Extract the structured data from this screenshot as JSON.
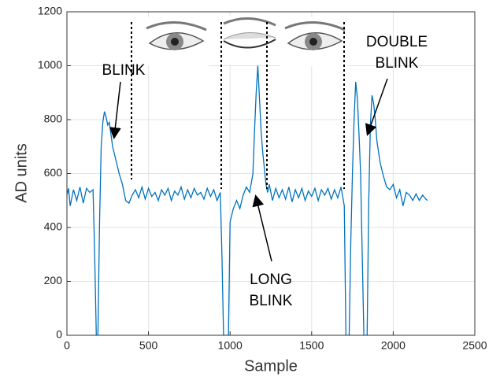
{
  "chart_data": {
    "type": "line",
    "x": [
      0,
      10,
      20,
      40,
      60,
      80,
      100,
      120,
      140,
      160,
      170,
      180,
      190,
      200,
      210,
      220,
      230,
      240,
      250,
      260,
      280,
      300,
      320,
      340,
      360,
      380,
      400,
      420,
      440,
      460,
      480,
      500,
      520,
      540,
      560,
      580,
      600,
      620,
      640,
      660,
      680,
      700,
      720,
      740,
      760,
      780,
      800,
      820,
      840,
      860,
      880,
      900,
      920,
      940,
      950,
      960,
      980,
      990,
      1000,
      1020,
      1040,
      1060,
      1080,
      1100,
      1120,
      1140,
      1150,
      1160,
      1170,
      1180,
      1190,
      1200,
      1210,
      1220,
      1230,
      1240,
      1260,
      1280,
      1300,
      1320,
      1340,
      1360,
      1380,
      1400,
      1420,
      1440,
      1460,
      1480,
      1500,
      1520,
      1540,
      1560,
      1580,
      1600,
      1620,
      1640,
      1660,
      1680,
      1700,
      1710,
      1730,
      1740,
      1750,
      1760,
      1770,
      1780,
      1790,
      1800,
      1810,
      1820,
      1840,
      1850,
      1860,
      1870,
      1880,
      1890,
      1900,
      1920,
      1940,
      1960,
      1980,
      2000,
      2020,
      2040,
      2060,
      2080,
      2100,
      2120,
      2140,
      2160,
      2180,
      2200,
      2210
    ],
    "values": [
      520,
      545,
      480,
      540,
      500,
      550,
      490,
      545,
      530,
      540,
      300,
      0,
      0,
      420,
      700,
      790,
      830,
      810,
      780,
      790,
      700,
      650,
      600,
      560,
      500,
      490,
      520,
      540,
      510,
      550,
      505,
      545,
      515,
      530,
      500,
      540,
      520,
      545,
      500,
      535,
      520,
      550,
      505,
      540,
      510,
      545,
      520,
      530,
      505,
      545,
      515,
      540,
      500,
      530,
      300,
      0,
      0,
      0,
      420,
      470,
      500,
      470,
      520,
      550,
      530,
      600,
      760,
      900,
      1000,
      880,
      760,
      680,
      620,
      560,
      530,
      560,
      500,
      545,
      510,
      540,
      505,
      550,
      495,
      540,
      510,
      545,
      500,
      535,
      515,
      545,
      500,
      540,
      520,
      545,
      505,
      540,
      510,
      550,
      480,
      0,
      0,
      350,
      600,
      800,
      940,
      880,
      750,
      600,
      300,
      0,
      0,
      500,
      780,
      890,
      860,
      800,
      720,
      640,
      590,
      550,
      540,
      560,
      510,
      540,
      480,
      530,
      520,
      500,
      525,
      500,
      520,
      505,
      500
    ],
    "color": "#0072bd",
    "xlabel": "Sample",
    "ylabel": "AD units",
    "xlim": [
      0,
      2500
    ],
    "xticks": [
      0,
      500,
      1000,
      1500,
      2000,
      2500
    ],
    "ylim": [
      0,
      1200
    ],
    "yticks": [
      0,
      200,
      400,
      600,
      800,
      1000,
      1200
    ],
    "grid": true,
    "annotations": [
      [
        "BLINK"
      ],
      [
        "DOUBLE",
        "BLINK"
      ],
      [
        "LONG",
        "BLINK"
      ]
    ]
  }
}
